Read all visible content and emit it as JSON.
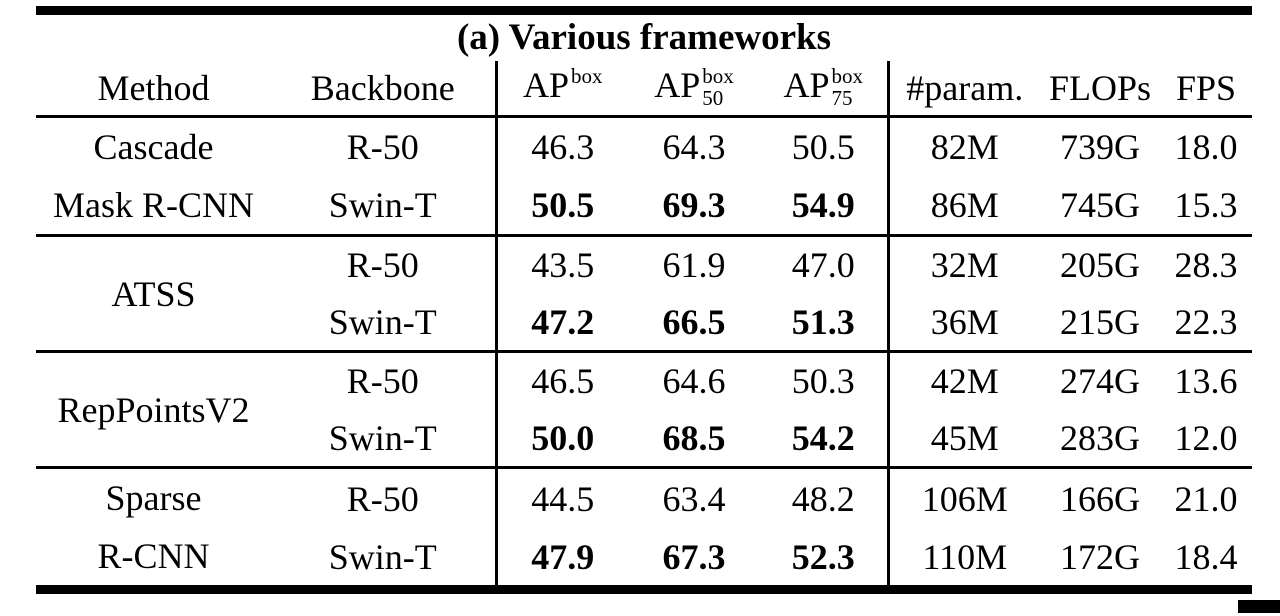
{
  "colors": {
    "text": "#000000",
    "background": "#ffffff",
    "rule": "#000000"
  },
  "table": {
    "title": "(a) Various frameworks",
    "columns": {
      "method": "Method",
      "backbone": "Backbone",
      "ap": {
        "base": "AP",
        "sup": "box",
        "sub": ""
      },
      "ap50": {
        "base": "AP",
        "sup": "box",
        "sub": "50"
      },
      "ap75": {
        "base": "AP",
        "sup": "box",
        "sub": "75"
      },
      "params": "#param.",
      "flops": "FLOPs",
      "fps": "FPS"
    },
    "groups": [
      {
        "method_lines": [
          "Cascade",
          "Mask R-CNN"
        ],
        "rows": [
          {
            "backbone": "R-50",
            "ap": "46.3",
            "ap50": "64.3",
            "ap75": "50.5",
            "params": "82M",
            "flops": "739G",
            "fps": "18.0"
          },
          {
            "backbone": "Swin-T",
            "ap": "50.5",
            "ap50": "69.3",
            "ap75": "54.9",
            "params": "86M",
            "flops": "745G",
            "fps": "15.3"
          }
        ]
      },
      {
        "method_lines": [
          "ATSS"
        ],
        "rows": [
          {
            "backbone": "R-50",
            "ap": "43.5",
            "ap50": "61.9",
            "ap75": "47.0",
            "params": "32M",
            "flops": "205G",
            "fps": "28.3"
          },
          {
            "backbone": "Swin-T",
            "ap": "47.2",
            "ap50": "66.5",
            "ap75": "51.3",
            "params": "36M",
            "flops": "215G",
            "fps": "22.3"
          }
        ]
      },
      {
        "method_lines": [
          "RepPointsV2"
        ],
        "rows": [
          {
            "backbone": "R-50",
            "ap": "46.5",
            "ap50": "64.6",
            "ap75": "50.3",
            "params": "42M",
            "flops": "274G",
            "fps": "13.6"
          },
          {
            "backbone": "Swin-T",
            "ap": "50.0",
            "ap50": "68.5",
            "ap75": "54.2",
            "params": "45M",
            "flops": "283G",
            "fps": "12.0"
          }
        ]
      },
      {
        "method_lines": [
          "Sparse",
          "R-CNN"
        ],
        "rows": [
          {
            "backbone": "R-50",
            "ap": "44.5",
            "ap50": "63.4",
            "ap75": "48.2",
            "params": "106M",
            "flops": "166G",
            "fps": "21.0"
          },
          {
            "backbone": "Swin-T",
            "ap": "47.9",
            "ap50": "67.3",
            "ap75": "52.3",
            "params": "110M",
            "flops": "172G",
            "fps": "18.4"
          }
        ]
      }
    ]
  }
}
